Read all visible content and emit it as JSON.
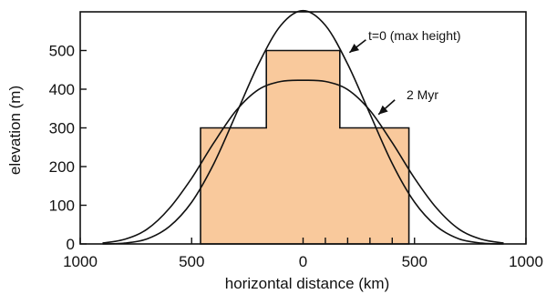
{
  "chart_data": {
    "type": "line",
    "title": "",
    "xlabel": "horizontal distance  (km)",
    "ylabel": "elevation  (m)",
    "xlim": [
      -1000,
      1000
    ],
    "ylim": [
      0,
      600
    ],
    "x_ticks": [
      -1000,
      -500,
      0,
      500,
      1000
    ],
    "x_tick_labels": [
      "1000",
      "500",
      "0",
      "500",
      "1000"
    ],
    "y_ticks": [
      0,
      100,
      200,
      300,
      400,
      500
    ],
    "y_tick_labels": [
      "0",
      "100",
      "200",
      "300",
      "400",
      "500"
    ],
    "extra_x_ticks": [
      100,
      200,
      300,
      400
    ],
    "grid": false,
    "fill_color": "#f9c99c",
    "line_color": "#111111",
    "initial_profile": {
      "x": [
        -460,
        -460,
        -165,
        -165,
        165,
        165,
        475,
        475
      ],
      "y": [
        0,
        300,
        300,
        500,
        500,
        300,
        300,
        0
      ]
    },
    "series": [
      {
        "name": "t=0  (max height)",
        "x": [
          -900,
          -800,
          -700,
          -600,
          -500,
          -400,
          -300,
          -200,
          -100,
          0,
          100,
          200,
          300,
          400,
          500,
          600,
          700,
          800,
          900
        ],
        "y": [
          0,
          2,
          13,
          45,
          108,
          208,
          336,
          465,
          565,
          603,
          565,
          465,
          336,
          208,
          108,
          45,
          13,
          2,
          0
        ]
      },
      {
        "name": "2 Myr",
        "x": [
          -900,
          -800,
          -700,
          -600,
          -500,
          -400,
          -300,
          -200,
          -100,
          0,
          100,
          200,
          300,
          400,
          500,
          600,
          700,
          800,
          900
        ],
        "y": [
          2,
          12,
          38,
          92,
          170,
          262,
          345,
          399,
          420,
          423,
          420,
          399,
          345,
          262,
          170,
          92,
          38,
          12,
          2
        ]
      }
    ],
    "annotations": [
      {
        "text": "t=0  (max height)",
        "points_to": {
          "x": 200,
          "y": 490
        }
      },
      {
        "text": "2 Myr",
        "points_to": {
          "x": 330,
          "y": 330
        }
      }
    ]
  }
}
